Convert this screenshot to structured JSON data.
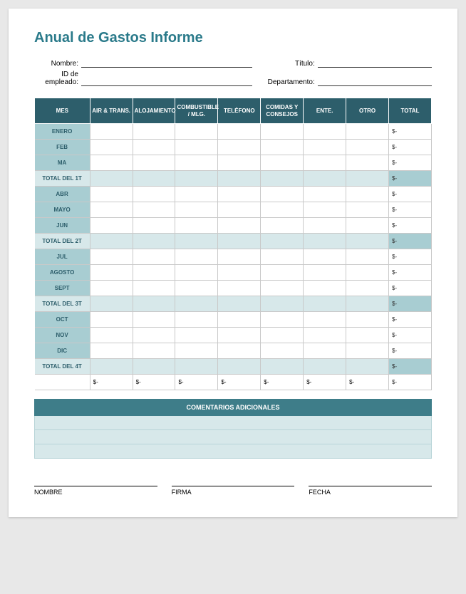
{
  "title": "Anual de Gastos Informe",
  "info": {
    "name_label": "Nombre:",
    "title_label": "Título:",
    "empid_label": "ID de empleado:",
    "dept_label": "Departamento:"
  },
  "table": {
    "headers": {
      "mes": "MES",
      "air": "AIR & TRANS.",
      "aloja": "ALOJAMIENTO",
      "combus": "COMBUSTIBLE / MLG.",
      "telefono": "TELÉFONO",
      "comidas": "COMIDAS Y CONSEJOS",
      "ente": "ENTE.",
      "otro": "OTRO",
      "total": "TOTAL"
    },
    "rows": [
      {
        "label": "ENERO",
        "type": "month",
        "total": "$-"
      },
      {
        "label": "FEB",
        "type": "month",
        "total": "$-"
      },
      {
        "label": "MA",
        "type": "month",
        "total": "$-"
      },
      {
        "label": "TOTAL DEL 1T",
        "type": "subtotal",
        "total": "$-"
      },
      {
        "label": "ABR",
        "type": "month",
        "total": "$-"
      },
      {
        "label": "MAYO",
        "type": "month",
        "total": "$-"
      },
      {
        "label": "JUN",
        "type": "month",
        "total": "$-"
      },
      {
        "label": "TOTAL DEL 2T",
        "type": "subtotal",
        "total": "$-"
      },
      {
        "label": "JUL",
        "type": "month",
        "total": "$-"
      },
      {
        "label": "AGOSTO",
        "type": "month",
        "total": "$-"
      },
      {
        "label": "SEPT",
        "type": "month",
        "total": "$-"
      },
      {
        "label": "TOTAL DEL 3T",
        "type": "subtotal",
        "total": "$-"
      },
      {
        "label": "OCT",
        "type": "month",
        "total": "$-"
      },
      {
        "label": "NOV",
        "type": "month",
        "total": "$-"
      },
      {
        "label": "DIC",
        "type": "month",
        "total": "$-"
      },
      {
        "label": "TOTAL DEL 4T",
        "type": "subtotal",
        "total": "$-"
      }
    ],
    "grand": {
      "label": "",
      "cells": [
        "$-",
        "$-",
        "$-",
        "$-",
        "$-",
        "$-",
        "$-",
        "$-"
      ]
    }
  },
  "comments": {
    "header": "COMENTARIOS ADICIONALES",
    "rows": 3
  },
  "signatures": {
    "name": "NOMBRE",
    "sign": "FIRMA",
    "date": "FECHA"
  },
  "colors": {
    "title": "#2a7a8a",
    "header_bg": "#2d5e6b",
    "row_label_bg": "#a8cdd2",
    "subtotal_bg": "#d7e8ea",
    "orange_border": "#d98b55",
    "comments_header_bg": "#3e7d89"
  }
}
